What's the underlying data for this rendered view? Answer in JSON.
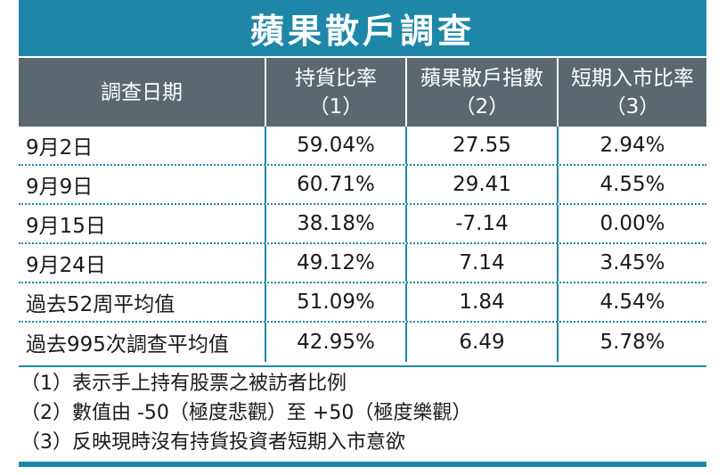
{
  "title": "蘋果散戶調查",
  "colors": {
    "accent": "#1e87a8",
    "header_bg": "#5b6870",
    "text": "#1a1a1a"
  },
  "table": {
    "headers": [
      {
        "line1": "調查日期",
        "line2": ""
      },
      {
        "line1": "持貨比率",
        "line2": "（1）"
      },
      {
        "line1": "蘋果散戶指數",
        "line2": "（2）"
      },
      {
        "line1": "短期入市比率",
        "line2": "（3）"
      }
    ],
    "rows": [
      {
        "date": "9月2日",
        "holding": "59.04%",
        "index": "27.55",
        "entry": "2.94%"
      },
      {
        "date": "9月9日",
        "holding": "60.71%",
        "index": "29.41",
        "entry": "4.55%"
      },
      {
        "date": "9月15日",
        "holding": "38.18%",
        "index": "-7.14",
        "entry": "0.00%"
      },
      {
        "date": "9月24日",
        "holding": "49.12%",
        "index": "7.14",
        "entry": "3.45%"
      },
      {
        "date": "過去52周平均值",
        "holding": "51.09%",
        "index": "1.84",
        "entry": "4.54%"
      },
      {
        "date": "過去995次調查平均值",
        "holding": "42.95%",
        "index": "6.49",
        "entry": "5.78%"
      }
    ]
  },
  "notes": [
    "（1）表示手上持有股票之被訪者比例",
    "（2）數值由 -50（極度悲觀）至 +50（極度樂觀）",
    "（3）反映現時沒有持貨投資者短期入市意欲"
  ]
}
